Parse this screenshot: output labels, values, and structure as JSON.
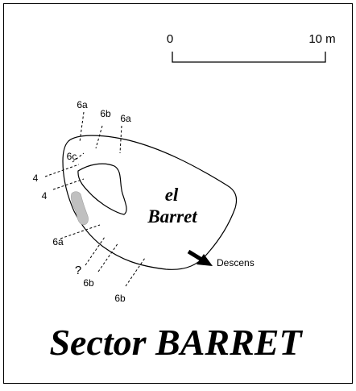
{
  "scale": {
    "start_label": "0",
    "end_label": "10 m"
  },
  "block": {
    "name_line1": "el",
    "name_line2": "Barret"
  },
  "routes": {
    "r1": "6a",
    "r2": "6b",
    "r3": "6a",
    "r4": "6c",
    "r5": "4",
    "r6": "4",
    "r7": "6a",
    "r8": "?",
    "r9": "6b",
    "r10": "6b"
  },
  "descent": {
    "label": "Descens"
  },
  "title": "Sector BARRET",
  "colors": {
    "ink": "#000000",
    "rock_patch": "#c0c0c0",
    "frame": "#000000",
    "background": "#ffffff"
  }
}
